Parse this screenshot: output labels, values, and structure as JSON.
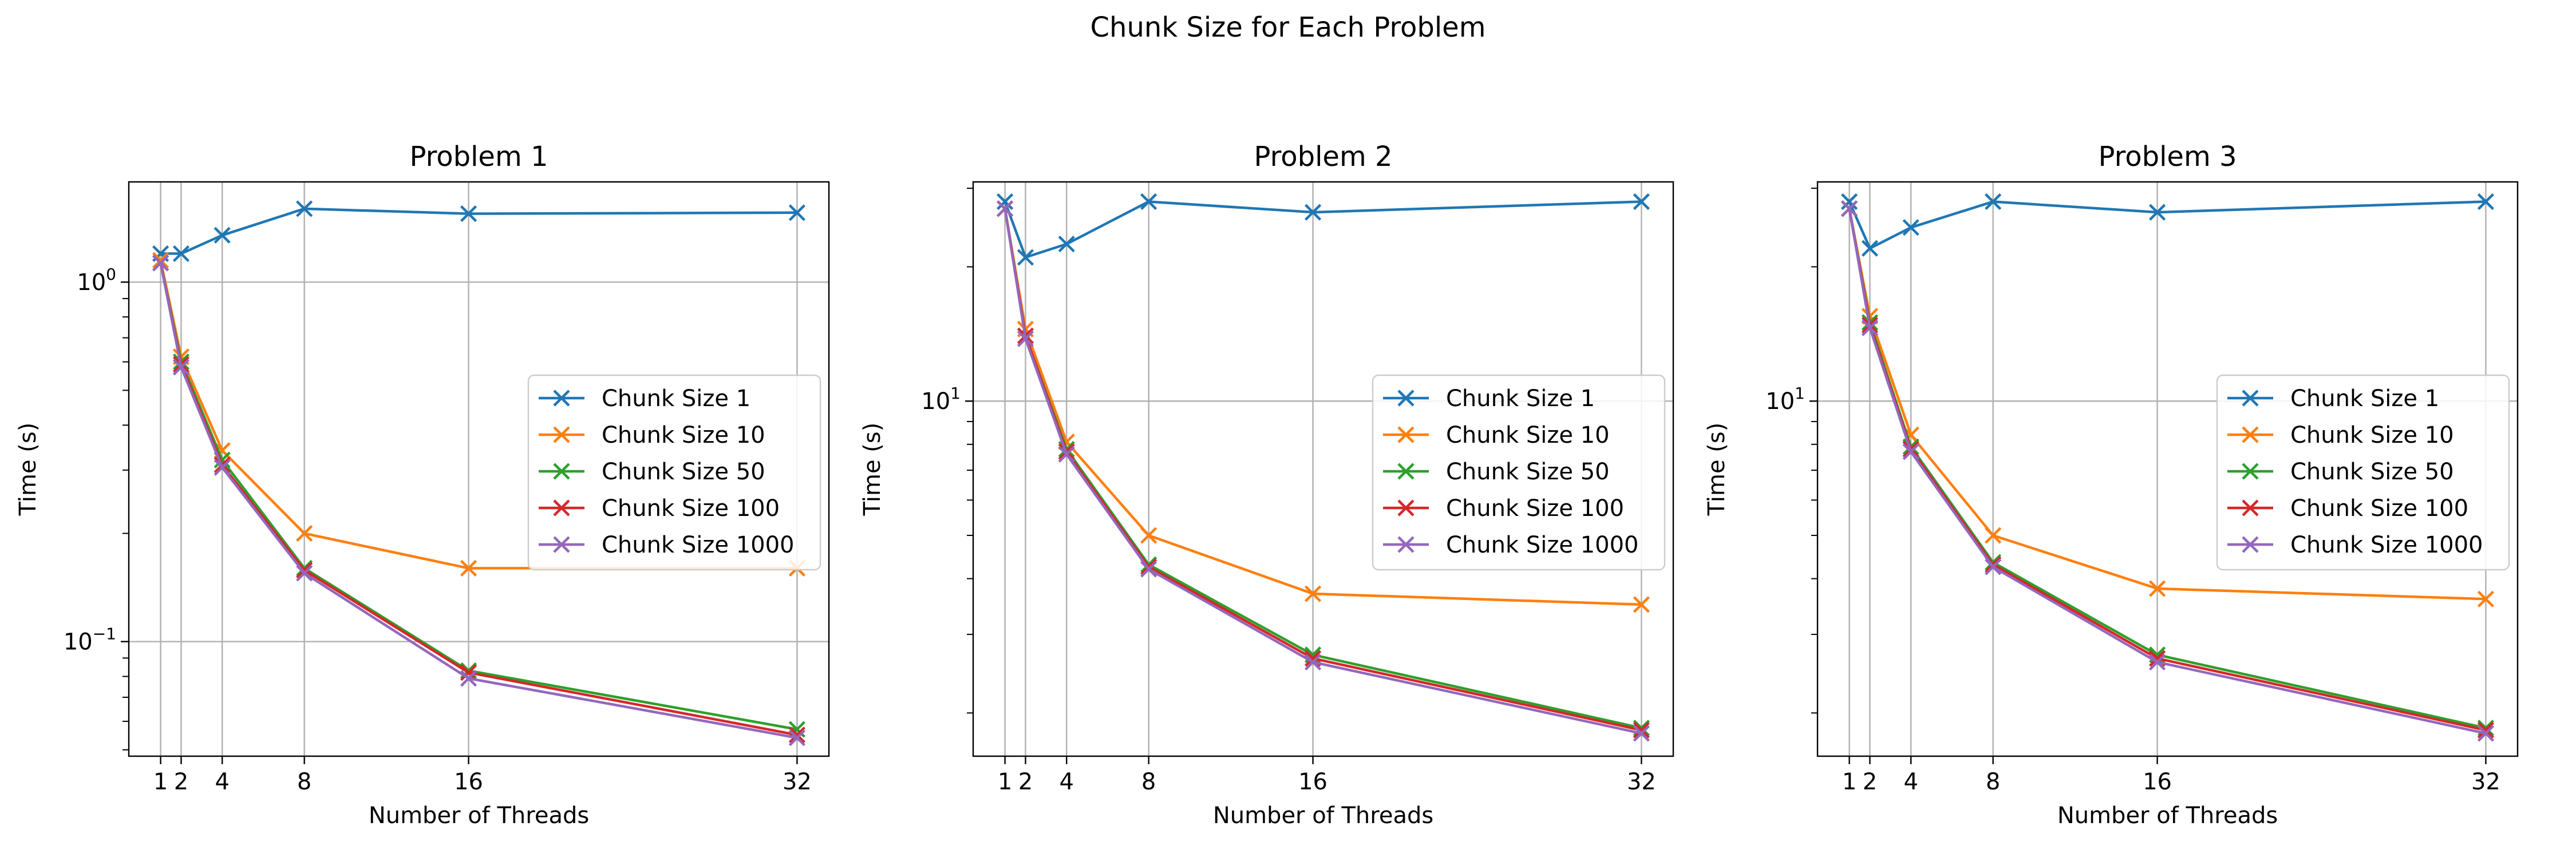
{
  "figure": {
    "suptitle": "Chunk Size for Each Problem"
  },
  "colors": {
    "grid": "#b0b0b0",
    "axes": "#000000",
    "legend_border": "#cccccc"
  },
  "chart_data": [
    {
      "type": "line",
      "title": "Problem 1",
      "xlabel": "Number of Threads",
      "ylabel": "Time (s)",
      "yscale": "log",
      "ylim": [
        0.048,
        1.9
      ],
      "x": [
        1,
        2,
        4,
        8,
        16,
        32
      ],
      "xticks": [
        "1",
        "2",
        "4",
        "8",
        "16",
        "32"
      ],
      "yticks": [
        {
          "value": 1,
          "base": "10",
          "exp": "0"
        },
        {
          "value": 0.1,
          "base": "10",
          "exp": "−1"
        }
      ],
      "grid": true,
      "legend": "center-right",
      "marker": "x",
      "series": [
        {
          "name": "Chunk Size 1",
          "color": "#1f77b4",
          "values": [
            1.2,
            1.2,
            1.35,
            1.6,
            1.55,
            1.56
          ]
        },
        {
          "name": "Chunk Size 10",
          "color": "#ff7f0e",
          "values": [
            1.15,
            0.62,
            0.34,
            0.2,
            0.16,
            0.16
          ]
        },
        {
          "name": "Chunk Size 50",
          "color": "#2ca02c",
          "values": [
            1.13,
            0.6,
            0.32,
            0.16,
            0.083,
            0.057
          ]
        },
        {
          "name": "Chunk Size 100",
          "color": "#d62728",
          "values": [
            1.13,
            0.59,
            0.31,
            0.158,
            0.082,
            0.055
          ]
        },
        {
          "name": "Chunk Size 1000",
          "color": "#9467bd",
          "values": [
            1.13,
            0.58,
            0.305,
            0.155,
            0.079,
            0.054
          ]
        }
      ]
    },
    {
      "type": "line",
      "title": "Problem 2",
      "xlabel": "Number of Threads",
      "ylabel": "Time (s)",
      "yscale": "log",
      "ylim": [
        1.6,
        31
      ],
      "x": [
        1,
        2,
        4,
        8,
        16,
        32
      ],
      "xticks": [
        "1",
        "2",
        "4",
        "8",
        "16",
        "32"
      ],
      "yticks": [
        {
          "value": 10,
          "base": "10",
          "exp": "1"
        }
      ],
      "grid": true,
      "legend": "center-right",
      "marker": "x",
      "series": [
        {
          "name": "Chunk Size 1",
          "color": "#1f77b4",
          "values": [
            28,
            21,
            22.5,
            28,
            26.5,
            28
          ]
        },
        {
          "name": "Chunk Size 10",
          "color": "#ff7f0e",
          "values": [
            27,
            14.5,
            8.1,
            5.0,
            3.7,
            3.5
          ]
        },
        {
          "name": "Chunk Size 50",
          "color": "#2ca02c",
          "values": [
            27,
            14,
            7.8,
            4.3,
            2.7,
            1.85
          ]
        },
        {
          "name": "Chunk Size 100",
          "color": "#d62728",
          "values": [
            27,
            14,
            7.7,
            4.25,
            2.65,
            1.83
          ]
        },
        {
          "name": "Chunk Size 1000",
          "color": "#9467bd",
          "values": [
            27,
            13.8,
            7.6,
            4.2,
            2.6,
            1.8
          ]
        }
      ]
    },
    {
      "type": "line",
      "title": "Problem 3",
      "xlabel": "Number of Threads",
      "ylabel": "Time (s)",
      "yscale": "log",
      "ylim": [
        1.6,
        31
      ],
      "x": [
        1,
        2,
        4,
        8,
        16,
        32
      ],
      "xticks": [
        "1",
        "2",
        "4",
        "8",
        "16",
        "32"
      ],
      "yticks": [
        {
          "value": 10,
          "base": "10",
          "exp": "1"
        }
      ],
      "grid": true,
      "legend": "center-right",
      "marker": "x",
      "series": [
        {
          "name": "Chunk Size 1",
          "color": "#1f77b4",
          "values": [
            28,
            22,
            24.5,
            28,
            26.5,
            28
          ]
        },
        {
          "name": "Chunk Size 10",
          "color": "#ff7f0e",
          "values": [
            27,
            15.5,
            8.4,
            5.0,
            3.8,
            3.6
          ]
        },
        {
          "name": "Chunk Size 50",
          "color": "#2ca02c",
          "values": [
            27,
            15,
            7.9,
            4.35,
            2.7,
            1.85
          ]
        },
        {
          "name": "Chunk Size 100",
          "color": "#d62728",
          "values": [
            27,
            14.8,
            7.8,
            4.3,
            2.65,
            1.83
          ]
        },
        {
          "name": "Chunk Size 1000",
          "color": "#9467bd",
          "values": [
            27,
            14.6,
            7.7,
            4.25,
            2.6,
            1.8
          ]
        }
      ]
    }
  ]
}
